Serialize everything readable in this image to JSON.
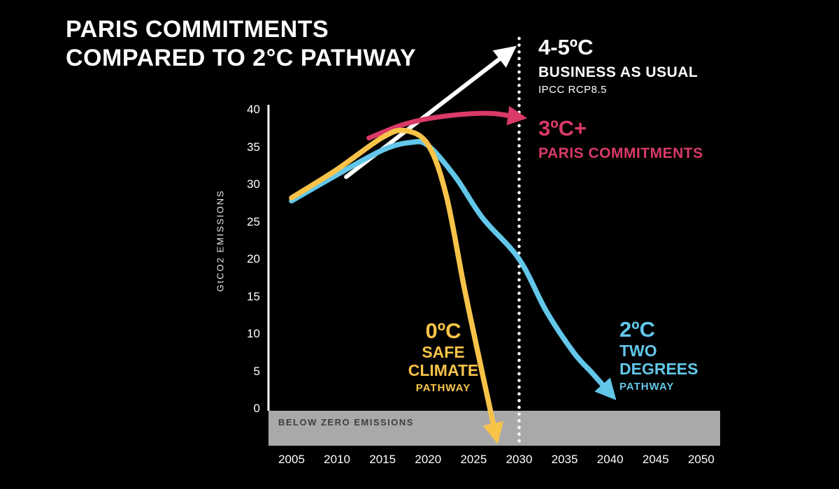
{
  "title": {
    "line1": "PARIS COMMITMENTS",
    "line2": "COMPARED TO 2°C PATHWAY"
  },
  "chart_data": {
    "type": "line",
    "title": "PARIS COMMITMENTS COMPARED TO 2°C PATHWAY",
    "xlabel": "",
    "ylabel": "GtCO2 EMISSIONS",
    "y_ticks": [
      0,
      5,
      10,
      15,
      20,
      25,
      30,
      35,
      40
    ],
    "x_ticks": [
      2005,
      2010,
      2015,
      2020,
      2025,
      2030,
      2035,
      2040,
      2045,
      2050
    ],
    "ylim": [
      -5,
      40
    ],
    "xlim": [
      2003,
      2052
    ],
    "grid": false,
    "reference_line": {
      "x": 2030,
      "style": "dotted",
      "color": "#ffffff"
    },
    "below_zero_band": {
      "from": 0,
      "to": -5,
      "label": "BELOW ZERO EMISSIONS",
      "color": "#a9a9a9"
    },
    "series": [
      {
        "id": "business-as-usual",
        "label_temp": "4-5ºC",
        "label_name": "BUSINESS AS USUAL",
        "label_note": "IPCC RCP8.5",
        "color": "#ffffff",
        "shape": "straight",
        "arrow": true,
        "points": [
          [
            2011,
            31
          ],
          [
            2028.4,
            47.3
          ]
        ]
      },
      {
        "id": "paris-commitments",
        "label_temp": "3ºC+",
        "label_name": "PARIS COMMITMENTS",
        "color": "#d93a67",
        "shape": "smooth",
        "arrow": true,
        "points": [
          [
            2013.5,
            36.2
          ],
          [
            2017,
            37.9
          ],
          [
            2020,
            38.8
          ],
          [
            2024,
            39.4
          ],
          [
            2027,
            39.5
          ],
          [
            2029.4,
            39.1
          ]
        ]
      },
      {
        "id": "two-degrees-pathway",
        "label_temp": "2ºC",
        "label_lines": [
          "TWO",
          "DEGREES",
          "PATHWAY"
        ],
        "color": "#63c7ea",
        "shape": "smooth",
        "arrow": true,
        "points": [
          [
            2005,
            27.8
          ],
          [
            2010,
            31.3
          ],
          [
            2015,
            34.6
          ],
          [
            2018,
            35.6
          ],
          [
            2020,
            35.2
          ],
          [
            2023,
            31
          ],
          [
            2026,
            25.5
          ],
          [
            2030,
            20
          ],
          [
            2033,
            13
          ],
          [
            2036,
            7.5
          ],
          [
            2038,
            4.8
          ],
          [
            2039.6,
            2.6
          ]
        ]
      },
      {
        "id": "safe-climate-pathway",
        "label_temp": "0ºC",
        "label_lines": [
          "SAFE",
          "CLIMATE",
          "PATHWAY"
        ],
        "color": "#f8c349",
        "shape": "smooth",
        "arrow": true,
        "points": [
          [
            2005,
            28.2
          ],
          [
            2010,
            32
          ],
          [
            2015,
            36.3
          ],
          [
            2017.5,
            37.2
          ],
          [
            2020,
            35.3
          ],
          [
            2022,
            28.5
          ],
          [
            2024,
            16
          ],
          [
            2026,
            4.5
          ],
          [
            2027.3,
            -2.8
          ]
        ]
      }
    ]
  }
}
